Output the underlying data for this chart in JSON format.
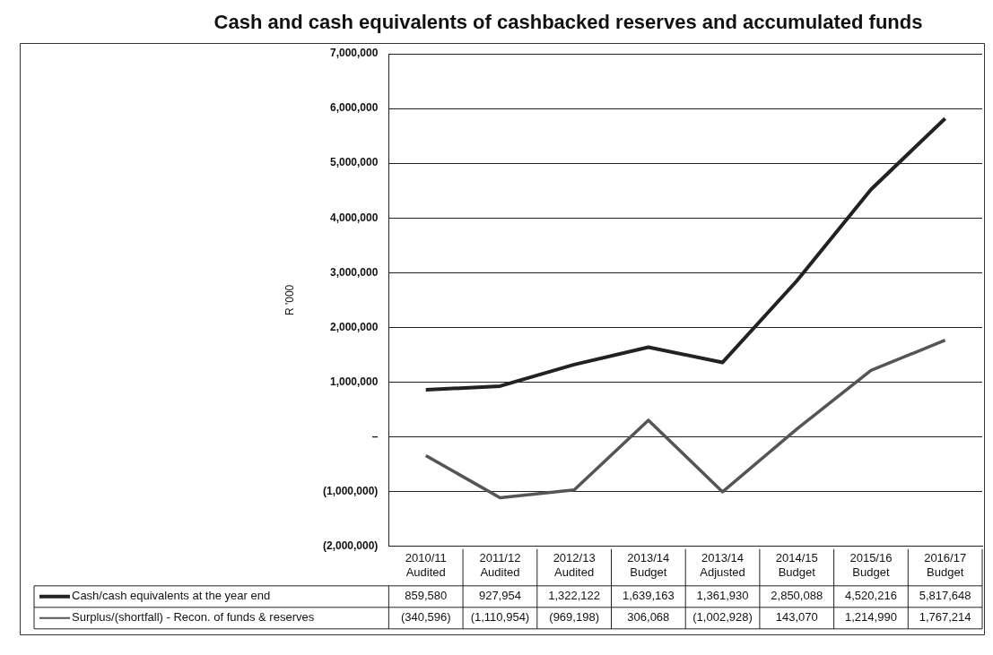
{
  "chart_data": {
    "type": "line",
    "title": "Cash and cash equivalents of cashbacked reserves and accumulated funds",
    "ylabel": "R '000",
    "categories": [
      "2010/11 Audited",
      "2011/12 Audited",
      "2012/13 Audited",
      "2013/14 Budget",
      "2013/14 Adjusted",
      "2014/15 Budget",
      "2015/16 Budget",
      "2016/17 Budget"
    ],
    "series": [
      {
        "name": "Cash/cash equivalents at the year end",
        "color": "#222222",
        "values": [
          859580,
          927954,
          1322122,
          1639163,
          1361930,
          2850088,
          4520216,
          5817648
        ],
        "value_labels": [
          "859,580",
          "927,954",
          "1,322,122",
          "1,639,163",
          "1,361,930",
          "2,850,088",
          "4,520,216",
          "5,817,648"
        ]
      },
      {
        "name": "Surplus/(shortfall) - Recon. of funds & reserves",
        "color": "#555555",
        "values": [
          -340596,
          -1110954,
          -969198,
          306068,
          -1002928,
          143070,
          1214990,
          1767214
        ],
        "value_labels": [
          "(340,596)",
          "(1,110,954)",
          "(969,198)",
          "306,068",
          "(1,002,928)",
          "143,070",
          "1,214,990",
          "1,767,214"
        ]
      }
    ],
    "ylim": [
      -2000000,
      7000000
    ],
    "yticks": [
      {
        "value": -2000000,
        "label": "(2,000,000)"
      },
      {
        "value": -1000000,
        "label": "(1,000,000)"
      },
      {
        "value": 0,
        "label": "–"
      },
      {
        "value": 1000000,
        "label": "1,000,000"
      },
      {
        "value": 2000000,
        "label": "2,000,000"
      },
      {
        "value": 3000000,
        "label": "3,000,000"
      },
      {
        "value": 4000000,
        "label": "4,000,000"
      },
      {
        "value": 5000000,
        "label": "5,000,000"
      },
      {
        "value": 6000000,
        "label": "6,000,000"
      },
      {
        "value": 7000000,
        "label": "7,000,000"
      }
    ],
    "grid": "y",
    "legend": "bottom",
    "marker": "none",
    "line_style": "solid"
  }
}
